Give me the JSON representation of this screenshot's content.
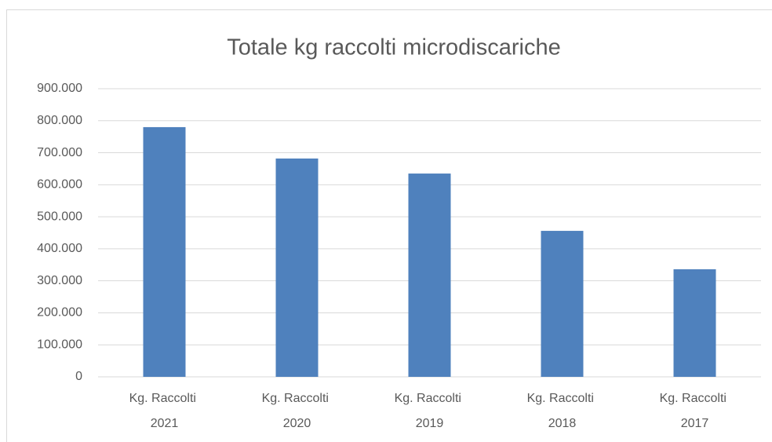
{
  "chart_data": {
    "type": "bar",
    "title": "Totale kg raccolti microdiscariche",
    "categories": [
      "Kg. Raccolti 2021",
      "Kg. Raccolti 2020",
      "Kg. Raccolti 2019",
      "Kg. Raccolti 2018",
      "Kg. Raccolti 2017"
    ],
    "values": [
      780000,
      682000,
      635000,
      456000,
      336000
    ],
    "color": "#4f81bd",
    "ylim": [
      0,
      900000
    ],
    "yticks": [
      0,
      {
        "value": 100000,
        "label": "100.000"
      },
      {
        "value": 200000,
        "label": "200.000"
      },
      {
        "value": 300000,
        "label": "300.000"
      },
      {
        "value": 400000,
        "label": "400.000"
      },
      {
        "value": 500000,
        "label": "500.000"
      },
      {
        "value": 600000,
        "label": "600.000"
      },
      {
        "value": 700000,
        "label": "700.000"
      },
      {
        "value": 800000,
        "label": "800.000"
      },
      {
        "value": 900000,
        "label": "900.000"
      }
    ],
    "grid": true
  }
}
